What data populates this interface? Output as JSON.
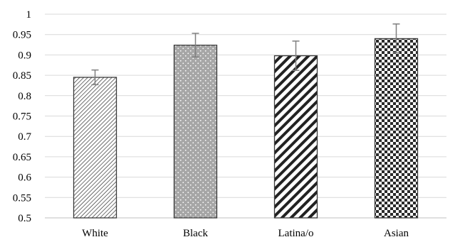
{
  "chart_data": {
    "type": "bar",
    "categories": [
      "White",
      "Black",
      "Latina/o",
      "Asian"
    ],
    "values": [
      0.845,
      0.924,
      0.898,
      0.94
    ],
    "error_low": [
      0.827,
      0.895,
      0.862,
      0.905
    ],
    "error_high": [
      0.863,
      0.953,
      0.934,
      0.976
    ],
    "patterns": [
      "diagonal-lines-fine",
      "dots-on-gray",
      "diagonal-stripes",
      "checkerboard"
    ],
    "title": "",
    "xlabel": "",
    "ylabel": "",
    "ylim": [
      0.5,
      1.0
    ],
    "yticks": [
      0.5,
      0.55,
      0.6,
      0.65,
      0.7,
      0.75,
      0.8,
      0.85,
      0.9,
      0.95,
      1
    ],
    "ytick_labels": [
      "0.5",
      "0.55",
      "0.6",
      "0.65",
      "0.7",
      "0.75",
      "0.8",
      "0.85",
      "0.9",
      "0.95",
      "1"
    ],
    "grid": true,
    "legend": "none",
    "colors": {
      "gridline": "#d9d9d9",
      "bar_border": "#3a3a3a",
      "error_bar": "#7f7f7f",
      "black_bar_fill": "#a6a6a6"
    }
  }
}
